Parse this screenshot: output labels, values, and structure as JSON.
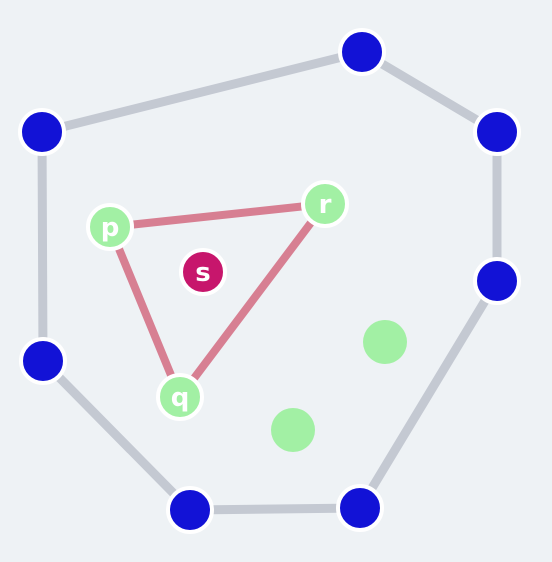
{
  "colors": {
    "hull_edge": "#c4c9d2",
    "triangle_edge": "#d77f92",
    "hull_vertex": "#1212d6",
    "inner_point": "#a2f0a4",
    "special_point": "#c7166c",
    "node_outline": "#ffffff"
  },
  "hull_vertices": [
    {
      "id": "h1",
      "name": "hull-vertex-top"
    },
    {
      "id": "h2",
      "name": "hull-vertex-upper-right"
    },
    {
      "id": "h3",
      "name": "hull-vertex-right"
    },
    {
      "id": "h4",
      "name": "hull-vertex-bottom-right"
    },
    {
      "id": "h5",
      "name": "hull-vertex-bottom-left"
    },
    {
      "id": "h6",
      "name": "hull-vertex-left"
    },
    {
      "id": "h7",
      "name": "hull-vertex-upper-left"
    }
  ],
  "triangle_points": [
    {
      "id": "p",
      "label": "p"
    },
    {
      "id": "r",
      "label": "r"
    },
    {
      "id": "q",
      "label": "q"
    }
  ],
  "inner_points": [
    {
      "id": "g1",
      "name": "inner-point-right"
    },
    {
      "id": "g2",
      "name": "inner-point-bottom"
    }
  ],
  "special_point": {
    "id": "s",
    "label": "s"
  }
}
